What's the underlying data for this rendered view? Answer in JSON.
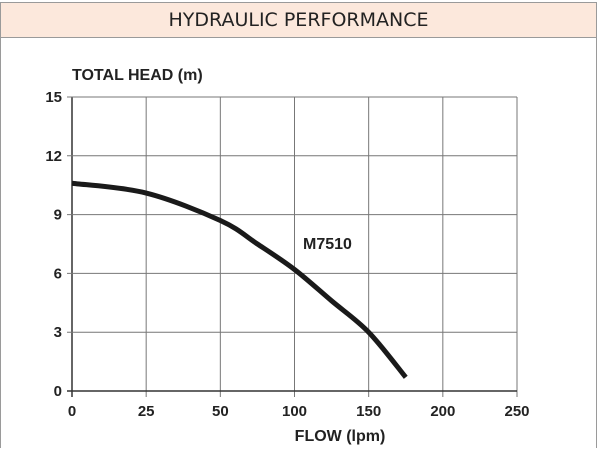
{
  "header": {
    "title": "HYDRAULIC PERFORMANCE"
  },
  "chart_data": {
    "type": "line",
    "title": "",
    "xlabel": "FLOW (lpm)",
    "ylabel": "TOTAL HEAD (m)",
    "xlim": [
      0,
      250
    ],
    "ylim": [
      0,
      15
    ],
    "xticks": [
      0,
      25,
      50,
      100,
      150,
      200,
      250
    ],
    "xgrid": [
      0,
      25,
      50,
      100,
      150,
      200,
      250
    ],
    "yticks": [
      0,
      3,
      6,
      9,
      12,
      15
    ],
    "grid": true,
    "series": [
      {
        "name": "M7510",
        "color": "#1a1a1a",
        "x": [
          0,
          25,
          50,
          75,
          100,
          125,
          150,
          175
        ],
        "y": [
          10.6,
          10.1,
          8.7,
          7.5,
          6.2,
          4.6,
          3.0,
          0.7
        ]
      }
    ]
  }
}
